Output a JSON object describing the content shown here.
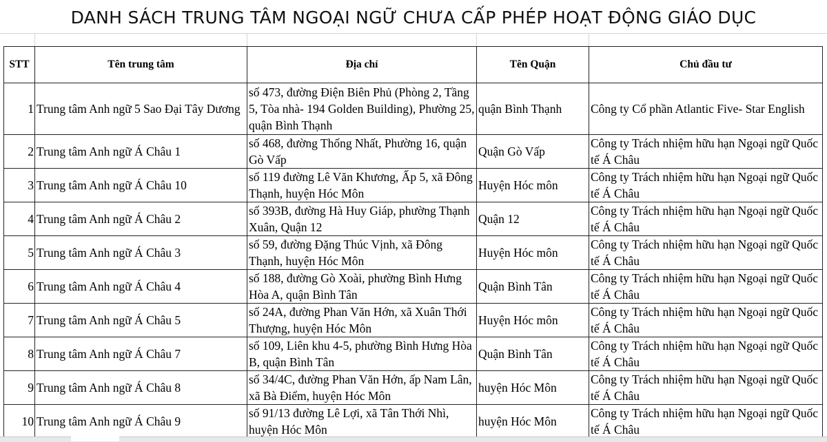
{
  "title": "DANH SÁCH TRUNG TÂM NGOẠI NGỮ CHƯA CẤP PHÉP HOẠT ĐỘNG GIÁO DỤC",
  "headers": [
    "STT",
    "Tên trung tâm",
    "Địa chỉ",
    "Tên Quận",
    "Chủ đầu tư"
  ],
  "rows": [
    [
      "1",
      "Trung tâm Anh ngữ 5 Sao Đại Tây Dương",
      "số 473, đường Điện Biên Phủ (Phòng 2, Tầng 5, Tòa nhà- 194 Golden Building), Phường 25, quận Bình Thạnh",
      "quận Bình Thạnh",
      "Công ty Cổ phần Atlantic Five- Star English"
    ],
    [
      "2",
      "Trung tâm Anh ngữ Á Châu 1",
      "số 468, đường Thống Nhất, Phường 16, quận Gò Vấp",
      "Quận Gò Vấp",
      "Công ty Trách nhiệm hữu hạn Ngoại ngữ Quốc tế Á Châu"
    ],
    [
      "3",
      "Trung tâm Anh ngữ Á Châu 10",
      "số 119 đường Lê Văn Khương, Ấp 5, xã Đông Thạnh, huyện Hóc Môn",
      "Huyện Hóc môn",
      "Công ty Trách nhiệm hữu hạn Ngoại ngữ Quốc tế Á Châu"
    ],
    [
      "4",
      "Trung tâm Anh ngữ Á Châu 2",
      "số 393B, đường Hà Huy Giáp, phường Thạnh Xuân, Quận 12",
      "Quận 12",
      "Công ty Trách nhiệm hữu hạn Ngoại ngữ Quốc tế Á Châu"
    ],
    [
      "5",
      "Trung tâm Anh ngữ Á Châu 3",
      "số 59, đường Đặng Thúc Vịnh, xã Đông Thạnh, huyện Hóc Môn",
      "Huyện Hóc môn",
      "Công ty Trách nhiệm hữu hạn Ngoại ngữ Quốc tế Á Châu"
    ],
    [
      "6",
      "Trung tâm Anh ngữ Á Châu 4",
      "số 188, đường Gò Xoài, phường Bình Hưng Hòa A, quận Bình Tân",
      "Quận Bình Tân",
      "Công ty Trách nhiệm hữu hạn Ngoại ngữ Quốc tế Á Châu"
    ],
    [
      "7",
      "Trung tâm Anh ngữ Á Châu 5",
      "số 24A, đường Phan Văn Hớn, xã Xuân Thới Thượng, huyện Hóc Môn",
      "Huyện Hóc môn",
      "Công ty Trách nhiệm hữu hạn Ngoại ngữ Quốc tế Á Châu"
    ],
    [
      "8",
      "Trung tâm Anh ngữ Á Châu 7",
      "số 109, Liên khu 4-5, phường Bình Hưng Hòa B, quận Bình Tân",
      "Quận Bình Tân",
      "Công ty Trách nhiệm hữu hạn Ngoại ngữ Quốc tế Á Châu"
    ],
    [
      "9",
      "Trung tâm Anh ngữ Á Châu 8",
      "số 34/4C, đường Phan Văn Hớn, ấp Nam Lân, xã Bà Điểm, huyện Hóc Môn",
      "huyện Hóc Môn",
      "Công ty Trách nhiệm hữu hạn Ngoại ngữ Quốc tế Á Châu"
    ],
    [
      "10",
      "Trung tâm Anh ngữ Á Châu 9",
      "số 91/13 đường Lê Lợi, xã Tân Thới Nhì, huyện Hóc Môn",
      "huyện Hóc Môn",
      "Công ty Trách nhiệm hữu hạn Ngoại ngữ Quốc tế Á Châu"
    ]
  ]
}
